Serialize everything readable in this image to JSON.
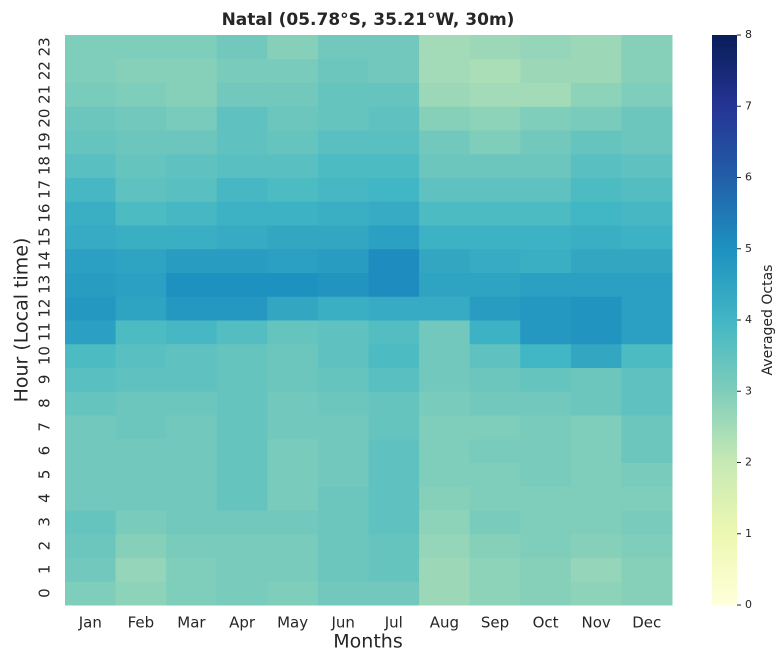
{
  "chart_data": {
    "type": "heatmap",
    "title": "Natal (05.78°S, 35.21°W, 30m)",
    "xlabel": "Months",
    "ylabel": "Hour (Local time)",
    "colorbar_label": "Averaged Octas",
    "categories": [
      "Jan",
      "Feb",
      "Mar",
      "Apr",
      "May",
      "Jun",
      "Jul",
      "Aug",
      "Sep",
      "Oct",
      "Nov",
      "Dec"
    ],
    "rows": [
      0,
      1,
      2,
      3,
      4,
      5,
      6,
      7,
      8,
      9,
      10,
      11,
      12,
      13,
      14,
      15,
      16,
      17,
      18,
      19,
      20,
      21,
      22,
      23
    ],
    "values": [
      [
        3.0,
        2.8,
        3.0,
        3.1,
        3.0,
        3.2,
        3.2,
        2.6,
        2.8,
        2.9,
        2.8,
        2.9
      ],
      [
        3.2,
        2.7,
        3.0,
        3.1,
        3.1,
        3.3,
        3.4,
        2.6,
        2.8,
        2.9,
        2.7,
        2.9
      ],
      [
        3.3,
        2.9,
        3.1,
        3.1,
        3.1,
        3.3,
        3.4,
        2.7,
        2.9,
        3.0,
        2.9,
        3.0
      ],
      [
        3.4,
        3.1,
        3.2,
        3.2,
        3.2,
        3.3,
        3.5,
        2.8,
        3.1,
        3.0,
        3.0,
        3.1
      ],
      [
        3.2,
        3.2,
        3.2,
        3.4,
        3.1,
        3.3,
        3.5,
        2.9,
        3.0,
        3.0,
        3.0,
        3.0
      ],
      [
        3.2,
        3.2,
        3.2,
        3.4,
        3.1,
        3.2,
        3.5,
        3.0,
        3.0,
        3.1,
        3.0,
        3.1
      ],
      [
        3.2,
        3.2,
        3.2,
        3.4,
        3.1,
        3.2,
        3.5,
        3.0,
        3.1,
        3.1,
        3.0,
        3.3
      ],
      [
        3.2,
        3.3,
        3.2,
        3.4,
        3.2,
        3.2,
        3.4,
        3.0,
        3.0,
        3.1,
        3.0,
        3.3
      ],
      [
        3.4,
        3.3,
        3.3,
        3.4,
        3.2,
        3.3,
        3.4,
        3.1,
        3.2,
        3.2,
        3.3,
        3.5
      ],
      [
        3.6,
        3.5,
        3.5,
        3.4,
        3.3,
        3.4,
        3.6,
        3.2,
        3.3,
        3.4,
        3.3,
        3.5
      ],
      [
        3.8,
        3.6,
        3.5,
        3.4,
        3.3,
        3.5,
        3.8,
        3.2,
        3.5,
        4.0,
        4.4,
        3.8
      ],
      [
        4.6,
        3.8,
        3.9,
        3.7,
        3.4,
        3.5,
        3.7,
        3.2,
        4.1,
        4.8,
        4.9,
        4.6
      ],
      [
        4.8,
        4.5,
        4.8,
        4.8,
        4.4,
        4.2,
        4.3,
        4.3,
        4.7,
        4.8,
        4.9,
        4.6
      ],
      [
        4.7,
        4.6,
        5.0,
        5.0,
        5.0,
        4.9,
        5.1,
        4.5,
        4.5,
        4.6,
        4.6,
        4.6
      ],
      [
        4.6,
        4.5,
        4.7,
        4.7,
        4.6,
        4.7,
        5.1,
        4.4,
        4.3,
        4.2,
        4.4,
        4.4
      ],
      [
        4.3,
        4.2,
        4.2,
        4.3,
        4.4,
        4.4,
        4.6,
        4.1,
        4.1,
        4.1,
        4.2,
        4.1
      ],
      [
        4.2,
        3.8,
        3.9,
        4.1,
        4.1,
        4.2,
        4.3,
        3.8,
        3.8,
        3.8,
        4.0,
        3.9
      ],
      [
        3.9,
        3.5,
        3.6,
        3.9,
        3.8,
        3.9,
        4.0,
        3.5,
        3.5,
        3.5,
        3.8,
        3.7
      ],
      [
        3.6,
        3.4,
        3.5,
        3.6,
        3.6,
        3.8,
        3.8,
        3.3,
        3.3,
        3.3,
        3.6,
        3.5
      ],
      [
        3.4,
        3.3,
        3.3,
        3.5,
        3.4,
        3.6,
        3.6,
        3.2,
        3.0,
        3.2,
        3.4,
        3.3
      ],
      [
        3.3,
        3.2,
        3.1,
        3.5,
        3.3,
        3.4,
        3.5,
        2.9,
        2.8,
        3.0,
        3.1,
        3.3
      ],
      [
        3.1,
        3.0,
        2.9,
        3.2,
        3.2,
        3.4,
        3.4,
        2.6,
        2.5,
        2.5,
        2.8,
        3.0
      ],
      [
        3.0,
        2.9,
        2.9,
        3.1,
        3.1,
        3.3,
        3.2,
        2.5,
        2.4,
        2.6,
        2.6,
        2.9
      ],
      [
        3.0,
        3.0,
        3.0,
        3.2,
        2.9,
        3.2,
        3.2,
        2.5,
        2.6,
        2.7,
        2.6,
        2.9
      ]
    ],
    "clim": [
      0,
      8
    ],
    "cticks": [
      0,
      1,
      2,
      3,
      4,
      5,
      6,
      7,
      8
    ],
    "colorscale": [
      "#ffffd9",
      "#edf8b1",
      "#c7e9b4",
      "#7fcdbb",
      "#41b6c4",
      "#1d91c0",
      "#225ea8",
      "#253494",
      "#081d58"
    ]
  }
}
